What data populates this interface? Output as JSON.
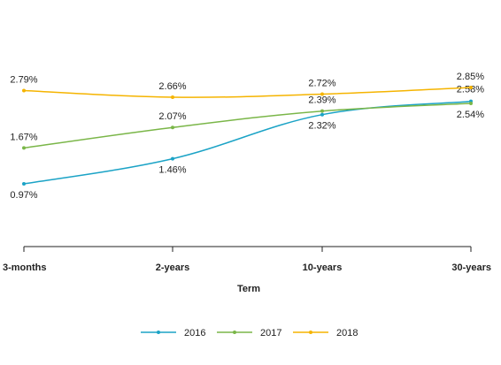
{
  "chart_data": {
    "type": "line",
    "categories": [
      "3-months",
      "2-years",
      "10-years",
      "30-years"
    ],
    "xlabel": "Term",
    "ylabel": "",
    "ylim": [
      0.5,
      3.0
    ],
    "grid": false,
    "legend_position": "bottom",
    "series": [
      {
        "name": "2016",
        "color": "#1BA3C6",
        "values": [
          0.97,
          1.46,
          2.32,
          2.58
        ],
        "labels": [
          "0.97%",
          "1.46%",
          "2.32%",
          "2.58%"
        ]
      },
      {
        "name": "2017",
        "color": "#7AB648",
        "values": [
          1.67,
          2.07,
          2.39,
          2.54
        ],
        "labels": [
          "1.67%",
          "2.07%",
          "2.39%",
          "2.54%"
        ]
      },
      {
        "name": "2018",
        "color": "#F5B400",
        "values": [
          2.79,
          2.66,
          2.72,
          2.85
        ],
        "labels": [
          "2.79%",
          "2.66%",
          "2.72%",
          "2.85%"
        ]
      }
    ]
  }
}
